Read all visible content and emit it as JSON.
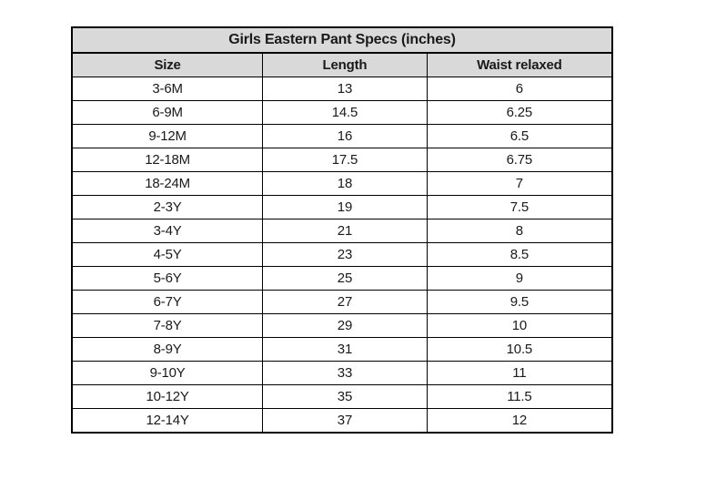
{
  "page": {
    "background": "#ffffff"
  },
  "table": {
    "title": "Girls Eastern Pant Specs (inches)",
    "columns": [
      "Size",
      "Length",
      "Waist relaxed"
    ],
    "rows": [
      {
        "size": "3-6M",
        "length": "13",
        "waist_relaxed": "6"
      },
      {
        "size": "6-9M",
        "length": "14.5",
        "waist_relaxed": "6.25"
      },
      {
        "size": "9-12M",
        "length": "16",
        "waist_relaxed": "6.5"
      },
      {
        "size": "12-18M",
        "length": "17.5",
        "waist_relaxed": "6.75"
      },
      {
        "size": "18-24M",
        "length": "18",
        "waist_relaxed": "7"
      },
      {
        "size": "2-3Y",
        "length": "19",
        "waist_relaxed": "7.5"
      },
      {
        "size": "3-4Y",
        "length": "21",
        "waist_relaxed": "8"
      },
      {
        "size": "4-5Y",
        "length": "23",
        "waist_relaxed": "8.5"
      },
      {
        "size": "5-6Y",
        "length": "25",
        "waist_relaxed": "9"
      },
      {
        "size": "6-7Y",
        "length": "27",
        "waist_relaxed": "9.5"
      },
      {
        "size": "7-8Y",
        "length": "29",
        "waist_relaxed": "10"
      },
      {
        "size": "8-9Y",
        "length": "31",
        "waist_relaxed": "10.5"
      },
      {
        "size": "9-10Y",
        "length": "33",
        "waist_relaxed": "11"
      },
      {
        "size": "10-12Y",
        "length": "35",
        "waist_relaxed": "11.5"
      },
      {
        "size": "12-14Y",
        "length": "37",
        "waist_relaxed": "12"
      }
    ],
    "colors": {
      "header_bg": "#d9d9d9",
      "border": "#000000",
      "row_bg": "#ffffff",
      "text": "#1a1a1a"
    }
  }
}
